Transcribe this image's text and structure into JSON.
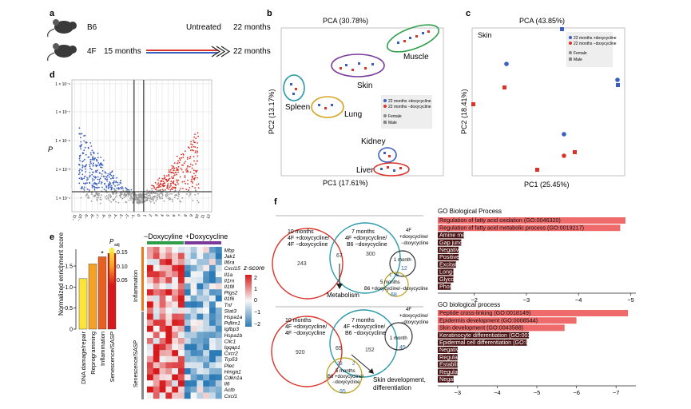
{
  "panels": {
    "a": "a",
    "b": "b",
    "c": "c",
    "d": "d",
    "e": "e",
    "f": "f"
  },
  "panel_a": {
    "row1_label": "B6",
    "row2_label": "4F",
    "start": "15 months",
    "untreated": "Untreated",
    "end1": "22 months",
    "end2": "22 months"
  },
  "panel_b": {
    "title": "PCA (30.78%)",
    "xlabel": "PC1 (17.61%)",
    "ylabel": "PC2 (13.17%)",
    "groups": [
      "Muscle",
      "Skin",
      "Spleen",
      "Lung",
      "Kidney",
      "Liver"
    ],
    "legend": [
      "22 months +doxycycline",
      "22 months −doxycycline",
      "Female",
      "Male"
    ]
  },
  "panel_c": {
    "title": "PCA (43.85%)",
    "subtitle": "Skin",
    "xlabel": "PC1 (25.45%)",
    "ylabel": "PC2 (18.41%)",
    "legend": [
      "22 months +doxycycline",
      "22 months −doxycycline",
      "Female",
      "Male"
    ]
  },
  "panel_d": {
    "ylabel": "P",
    "yticks": [
      "1 × 10⁻⁹",
      "1 × 10⁻⁷",
      "1 × 10⁻⁵",
      "1 × 10⁻³",
      "1 × 10⁻¹"
    ],
    "xticks": [
      "−11",
      "−10",
      "−9",
      "−8",
      "−7",
      "−6",
      "−5",
      "−4",
      "−3",
      "−2",
      "−1",
      "0",
      "1",
      "2",
      "3",
      "4",
      "5",
      "6",
      "7",
      "8",
      "9",
      "10",
      "11",
      "12"
    ]
  },
  "panel_e": {
    "ylabel": "Normalized enrichment score",
    "yticks": [
      "−1.5",
      "−1.0",
      "−0.5",
      "0"
    ],
    "legend_title": "P",
    "legend_sub": "adj",
    "legend_ticks": [
      "0.15",
      "0.10",
      "0.05"
    ],
    "star": "*",
    "chart_data": {
      "type": "bar",
      "categories": [
        "DNA damage/repair",
        "Reprogramming",
        "Inflammation",
        "Senescence/SASP"
      ],
      "values": [
        -1.2,
        -1.55,
        -1.72,
        -1.8
      ],
      "ylim": [
        0,
        -1.9
      ]
    }
  },
  "heatmap": {
    "col_dox_minus": "−Doxycyline",
    "col_dox_plus": "+Doxycycline",
    "group1": "Inflammation",
    "group2": "Senescence/SASP",
    "scale_title": "z-score",
    "scale_ticks": [
      "2",
      "1",
      "0",
      "−1",
      "−2"
    ],
    "genes": [
      "Mbp",
      "Jak1",
      "Il6ra",
      "Cxcl15",
      "Il1a",
      "Il1rn",
      "Il1f8",
      "Ptgs2",
      "Il1f6",
      "Tnf",
      "Stat3",
      "Hspa1a",
      "Pdlim1",
      "Igfbp3",
      "Hspa1b",
      "Clic1",
      "Igqap1",
      "Cxcr2",
      "Trp53",
      "Plec",
      "Hmga1",
      "Cdkn1a",
      "Il6",
      "Actb",
      "Cxcl1"
    ]
  },
  "venn_top": {
    "c1": "10 months\n4F +doxycycline/\n4F −doxycycline",
    "c2": "7 months\n4F +doxycycline/\nB6 −doxycycline",
    "c3": "4F\n+doxycycline/\n−doxycycline",
    "c4": "1 month",
    "c5": "5 months\nB6 +doxycycline/−doxycycline",
    "n1": "243",
    "n12": "67",
    "n2": "300",
    "n4": "12",
    "n3a": "1",
    "n3b": "3",
    "n5": "68",
    "arrow": "Metabolism"
  },
  "venn_bottom": {
    "c1": "10 months\n4F +doxycycline/\n4F −doxycycline",
    "c2": "7 months\n4F +doxycycline/\nB6 −doxycycline",
    "c3": "4F\n+doxycycline/\n−doxycycline",
    "c4": "1 month",
    "c5": "5 months\nB6 +doxycycline/\n−doxycycline",
    "n1": "920",
    "n12": "65",
    "n2": "152",
    "n4": "45",
    "n5": "95",
    "n3a": "23",
    "n3b": "2",
    "arrow": "Skin development,\ndifferentiation"
  },
  "go_top": {
    "title": "GO Biological Process",
    "xticks": [
      "−2",
      "−3",
      "−4",
      "−5"
    ],
    "chart_data": {
      "type": "bar",
      "categories": [
        "Regulation of fatty acid oxidation (GO:0046320)",
        "Regulation of fatty acid metabolic process (GO:0019217)",
        "Amine metabolic process (GO:0009308)",
        "Gap junction assembly (GO:0016264)",
        "Negative regulation of systemic arterial blood pressure (GO:0003085)",
        "Positive regulation of phospholipid biosynthetic process (GO:0071073)",
        "Excitatory chemical synaptic transmission (GO:0098976)",
        "Long-chain fatty acid import (GO:0044539)",
        "Glycosyl compound metabolic process (GO:1901657)",
        "Phospholipid homeostasis (GO:0055091)"
      ],
      "values": [
        -4.9,
        -4.8,
        -1.8,
        -1.75,
        -1.7,
        -1.7,
        -1.65,
        -1.6,
        -1.6,
        -1.55
      ]
    }
  },
  "go_bottom": {
    "title": "GO biological process",
    "xticks": [
      "−3",
      "−4",
      "−5",
      "−6",
      "−7"
    ],
    "chart_data": {
      "type": "bar",
      "categories": [
        "Peptide cross-linking (GO:0018149)",
        "Epidermis development (GO:0008544)",
        "Skin development (GO:0043588)",
        "Keratinocyte differentiation (GO:0030216)",
        "Epidermal cell differentiation (GO:0009913)",
        "Negative regulation of peptidase activity (GO:0010466)",
        "Regulation of water loss via skin (GO:0033561)",
        "Establishment of skin barrier (GO:0061436)",
        "Regulation of endopeptidase activity (GO:0052548)",
        "Negative regulation of endopeptidase activity (GO:0010951)"
      ],
      "values": [
        -7.3,
        -6.0,
        -5.7,
        -4.8,
        -4.75,
        -3.0,
        -3.0,
        -3.0,
        -3.0,
        -2.9
      ]
    }
  },
  "colors": {
    "blue": "#3b5fc0",
    "red": "#d9342b",
    "green": "#2e9e4a",
    "purple": "#7a3a9a",
    "teal": "#2a9aa8",
    "gold": "#d9a322",
    "orange": "#e87a1e",
    "bar_red": "#ef6b6b",
    "bar_dark": "#4a1414"
  }
}
